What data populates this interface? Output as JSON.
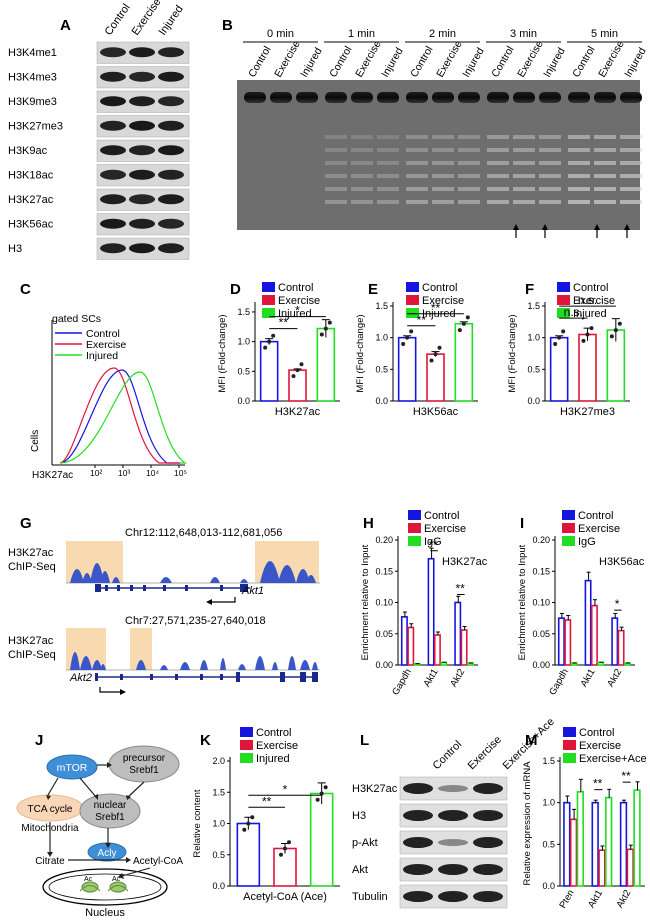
{
  "panels": {
    "A": "A",
    "B": "B",
    "C": "C",
    "D": "D",
    "E": "E",
    "F": "F",
    "G": "G",
    "H": "H",
    "I": "I",
    "J": "J",
    "K": "K",
    "L": "L",
    "M": "M"
  },
  "colors": {
    "control": "#1515e0",
    "exercise": "#e0153c",
    "injured": "#22dd22",
    "igg": "#22dd22",
    "highlight": "#f8d9b0",
    "track": "#3a56c8",
    "gel_bg": "#7a7a7a"
  },
  "panelA": {
    "columns": [
      "Control",
      "Exercise",
      "Injured"
    ],
    "rows": [
      "H3K4me1",
      "H3K4me3",
      "H3K9me3",
      "H3K27me3",
      "H3K9ac",
      "H3K18ac",
      "H3K27ac",
      "H3K56ac",
      "H3"
    ]
  },
  "panelB": {
    "timepoints": [
      "0 min",
      "1 min",
      "2 min",
      "3 min",
      "5 min"
    ],
    "lanes": [
      "Control",
      "Exercise",
      "Injured"
    ]
  },
  "panelC": {
    "label": "gated SCs",
    "legend": [
      "Control",
      "Exercise",
      "Injured"
    ],
    "ylabel": "Cells",
    "xlabel": "H3K27ac",
    "xticks": [
      "10²",
      "10³",
      "10⁴",
      "10⁵"
    ]
  },
  "chart_data": [
    {
      "panel": "D",
      "type": "bar",
      "categories": [
        "Control",
        "Exercise",
        "Injured"
      ],
      "values": [
        1.0,
        0.52,
        1.22
      ],
      "errors": [
        0.05,
        0.02,
        0.15
      ],
      "xlabel": "H3K27ac",
      "ylabel": "MFI (Fold-change)",
      "ylim": [
        0,
        1.6
      ],
      "yticks": [
        "0.0",
        "0.5",
        "1.0",
        "1.5"
      ],
      "significance": [
        "**",
        "*"
      ],
      "legend": [
        "Control",
        "Exercise",
        "Injured"
      ]
    },
    {
      "panel": "E",
      "type": "bar",
      "categories": [
        "Control",
        "Exercise",
        "Injured"
      ],
      "values": [
        1.0,
        0.74,
        1.22
      ],
      "errors": [
        0.03,
        0.04,
        0.03
      ],
      "xlabel": "H3K56ac",
      "ylabel": "MFI (Fold-change)",
      "ylim": [
        0,
        1.5
      ],
      "yticks": [
        "0.0",
        "0.5",
        "1.0",
        "1.5"
      ],
      "significance": [
        "**",
        "**"
      ],
      "legend": [
        "Control",
        "Exercise",
        "Injured"
      ]
    },
    {
      "panel": "F",
      "type": "bar",
      "categories": [
        "Control",
        "Exercise",
        "Injured"
      ],
      "values": [
        1.0,
        1.05,
        1.12
      ],
      "errors": [
        0.03,
        0.1,
        0.18
      ],
      "xlabel": "H3K27me3",
      "ylabel": "MFI (Fold-change)",
      "ylim": [
        0,
        1.5
      ],
      "yticks": [
        "0.0",
        "0.5",
        "1.0",
        "1.5"
      ],
      "significance": [
        "n.s.",
        "n.s."
      ],
      "legend": [
        "Control",
        "Exercise",
        "Injured"
      ]
    },
    {
      "panel": "H",
      "type": "bar",
      "categories": [
        "Gapdh",
        "Akt1",
        "Akt2"
      ],
      "series": [
        {
          "name": "Control",
          "values": [
            0.077,
            0.17,
            0.1
          ]
        },
        {
          "name": "Exercise",
          "values": [
            0.06,
            0.048,
            0.056
          ]
        },
        {
          "name": "IgG",
          "values": [
            0.002,
            0.004,
            0.003
          ]
        }
      ],
      "ylabel": "Enrichment relative to Input",
      "ylim": [
        0,
        0.2
      ],
      "yticks": [
        "0.00",
        "0.05",
        "0.10",
        "0.15",
        "0.20"
      ],
      "annotation": "H3K27ac",
      "significance": [
        "**",
        "**"
      ],
      "legend": [
        "Control",
        "Exercise",
        "IgG"
      ]
    },
    {
      "panel": "I",
      "type": "bar",
      "categories": [
        "Gapdh",
        "Akt1",
        "Akt2"
      ],
      "series": [
        {
          "name": "Control",
          "values": [
            0.075,
            0.135,
            0.075
          ]
        },
        {
          "name": "Exercise",
          "values": [
            0.072,
            0.095,
            0.055
          ]
        },
        {
          "name": "IgG",
          "values": [
            0.003,
            0.004,
            0.003
          ]
        }
      ],
      "ylabel": "Enrichment relative to Input",
      "ylim": [
        0,
        0.2
      ],
      "yticks": [
        "0.00",
        "0.05",
        "0.10",
        "0.15",
        "0.20"
      ],
      "annotation": "H3K56ac",
      "significance": [
        "*"
      ],
      "legend": [
        "Control",
        "Exercise",
        "IgG"
      ]
    },
    {
      "panel": "K",
      "type": "bar",
      "categories": [
        "Control",
        "Exercise",
        "Injured"
      ],
      "values": [
        1.0,
        0.6,
        1.48
      ],
      "errors": [
        0.1,
        0.08,
        0.17
      ],
      "xlabel": "Acetyl-CoA (Ace)",
      "ylabel": "Relative content",
      "ylim": [
        0,
        2.0
      ],
      "yticks": [
        "0.0",
        "0.5",
        "1.0",
        "1.5",
        "2.0"
      ],
      "significance": [
        "**",
        "*"
      ],
      "legend": [
        "Control",
        "Exercise",
        "Injured"
      ]
    },
    {
      "panel": "M",
      "type": "bar",
      "categories": [
        "Pten",
        "Akt1",
        "Akt2"
      ],
      "series": [
        {
          "name": "Control",
          "values": [
            1.0,
            1.0,
            1.0
          ]
        },
        {
          "name": "Exercise",
          "values": [
            0.8,
            0.43,
            0.44
          ]
        },
        {
          "name": "Exercise+Ace",
          "values": [
            1.13,
            1.06,
            1.15
          ]
        }
      ],
      "errors": [
        [
          0.08,
          0.03,
          0.03
        ],
        [
          0.12,
          0.05,
          0.05
        ],
        [
          0.15,
          0.1,
          0.1
        ]
      ],
      "ylabel": "Relative expression of mRNA",
      "ylim": [
        0,
        1.5
      ],
      "yticks": [
        "0.0",
        "0.5",
        "1.0",
        "1.5"
      ],
      "significance": [
        "**",
        "**"
      ],
      "legend": [
        "Control",
        "Exercise",
        "Exercise+Ace"
      ]
    }
  ],
  "panelG": {
    "ylabel1": "H3K27ac",
    "ylabel2": "ChIP-Seq",
    "locus1": "Chr12:112,648,013-112,681,056",
    "gene1": "Akt1",
    "locus2": "Chr7:27,571,235-27,640,018",
    "gene2": "Akt2"
  },
  "panelJ": {
    "mtor": "mTOR",
    "precursor1": "precursor",
    "precursor2": "Srebf1",
    "tca1": "TCA cycle",
    "mito": "Mitochondria",
    "nuclear1": "nuclear",
    "nuclear2": "Srebf1",
    "citrate": "Citrate",
    "acly": "Acly",
    "acetyl": "Acetyl-CoA",
    "ac": "Ac",
    "nucleus": "Nucleus"
  },
  "panelL": {
    "columns": [
      "Control",
      "Exercise",
      "Exercise+Ace"
    ],
    "rows": [
      "H3K27ac",
      "H3",
      "p-Akt",
      "Akt",
      "Tubulin"
    ]
  }
}
